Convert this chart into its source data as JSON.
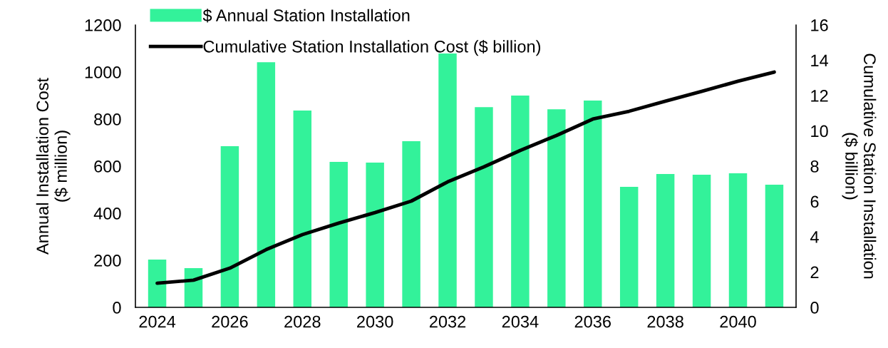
{
  "chart_data": {
    "type": "bar",
    "categories": [
      "2024",
      null,
      "2026",
      null,
      "2028",
      null,
      "2030",
      null,
      "2032",
      null,
      "2034",
      null,
      "2036",
      null,
      "2038",
      null,
      "2040",
      null
    ],
    "series": [
      {
        "name": "$ Annual Station Installation",
        "color": "#33f29a",
        "values": [
          203,
          167,
          685,
          1042,
          836,
          618,
          615,
          706,
          1079,
          851,
          900,
          842,
          879,
          512,
          567,
          564,
          570,
          521
        ]
      },
      {
        "name": "Cumulative Station Installation Cost ($ billion)",
        "type": "line",
        "axis": "y2",
        "color": "#000000",
        "values": [
          1.37,
          1.54,
          2.22,
          3.27,
          4.12,
          4.77,
          5.37,
          6.02,
          7.11,
          7.96,
          8.89,
          9.74,
          10.67,
          11.11,
          11.68,
          12.24,
          12.81,
          13.33
        ]
      }
    ],
    "ylabel": "Annual Installation Cost\n($ million)",
    "y2label": "Cumulative Station Installation\n($ billion)",
    "ylim": [
      0,
      1200
    ],
    "yticks": [
      0,
      200,
      400,
      600,
      800,
      1000,
      1200
    ],
    "y2lim": [
      0,
      16
    ],
    "y2ticks": [
      0,
      2,
      4,
      6,
      8,
      10,
      12,
      14,
      16
    ],
    "grid": false,
    "legend": "top left",
    "marker": "none",
    "line_style": "solid"
  }
}
